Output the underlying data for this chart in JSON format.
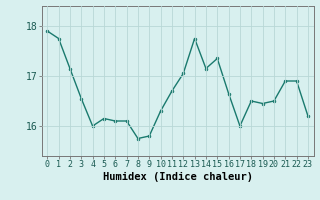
{
  "x": [
    0,
    1,
    2,
    3,
    4,
    5,
    6,
    7,
    8,
    9,
    10,
    11,
    12,
    13,
    14,
    15,
    16,
    17,
    18,
    19,
    20,
    21,
    22,
    23
  ],
  "y": [
    17.9,
    17.75,
    17.15,
    16.55,
    16.0,
    16.15,
    16.1,
    16.1,
    15.75,
    15.8,
    16.3,
    16.7,
    17.05,
    17.75,
    17.15,
    17.35,
    16.65,
    16.0,
    16.5,
    16.45,
    16.5,
    16.9,
    16.9,
    16.2
  ],
  "line_color": "#1a7a6e",
  "marker": "o",
  "marker_size": 2.0,
  "bg_color": "#d8f0ef",
  "grid_color": "#b8d8d6",
  "xlabel": "Humidex (Indice chaleur)",
  "xlabel_fontsize": 7.5,
  "ytick_labels": [
    "16",
    "17",
    "18"
  ],
  "yticks": [
    16,
    17,
    18
  ],
  "ylim": [
    15.4,
    18.4
  ],
  "xlim": [
    -0.5,
    23.5
  ],
  "xtick_fontsize": 6.0,
  "ytick_fontsize": 7.0,
  "line_width": 1.0,
  "spine_color": "#777777"
}
